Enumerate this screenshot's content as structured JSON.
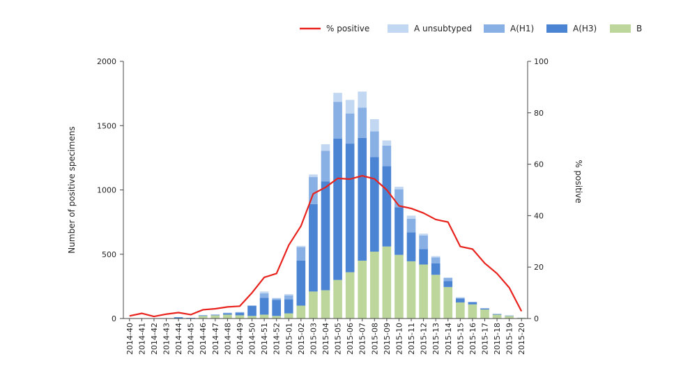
{
  "chart_data": {
    "type": "bar",
    "stacked": true,
    "categories": [
      "2014-40",
      "2014-41",
      "2014-42",
      "2014-43",
      "2014-44",
      "2014-45",
      "2014-46",
      "2014-47",
      "2014-48",
      "2014-49",
      "2014-50",
      "2014-51",
      "2014-52",
      "2015-01",
      "2015-02",
      "2015-03",
      "2015-04",
      "2015-05",
      "2015-06",
      "2015-07",
      "2015-08",
      "2015-09",
      "2015-10",
      "2015-11",
      "2015-12",
      "2015-13",
      "2015-14",
      "2015-15",
      "2015-16",
      "2015-17",
      "2015-18",
      "2015-19",
      "2015-20"
    ],
    "series": [
      {
        "name": "B",
        "color": "#bcd69c",
        "values": [
          0,
          0,
          0,
          0,
          0,
          0,
          20,
          25,
          30,
          25,
          20,
          30,
          20,
          40,
          100,
          210,
          220,
          300,
          360,
          450,
          520,
          560,
          495,
          445,
          420,
          340,
          245,
          125,
          110,
          70,
          30,
          20,
          5
        ]
      },
      {
        "name": "A(H3)",
        "color": "#4a84d2",
        "values": [
          0,
          0,
          0,
          0,
          10,
          5,
          5,
          5,
          10,
          20,
          80,
          130,
          125,
          110,
          350,
          680,
          845,
          1100,
          1000,
          955,
          735,
          625,
          370,
          225,
          120,
          90,
          45,
          30,
          15,
          8,
          5,
          3,
          1
        ]
      },
      {
        "name": "A(H1)",
        "color": "#88b0e4",
        "values": [
          0,
          0,
          0,
          0,
          0,
          0,
          0,
          0,
          5,
          5,
          0,
          35,
          10,
          30,
          105,
          210,
          240,
          285,
          235,
          235,
          200,
          160,
          140,
          105,
          105,
          45,
          25,
          5,
          5,
          2,
          0,
          0,
          0
        ]
      },
      {
        "name": "A unsubtyped",
        "color": "#c2d7f1",
        "values": [
          0,
          0,
          0,
          0,
          0,
          0,
          0,
          0,
          0,
          0,
          0,
          15,
          5,
          10,
          10,
          20,
          50,
          70,
          105,
          125,
          95,
          40,
          20,
          25,
          15,
          10,
          5,
          5,
          0,
          0,
          0,
          0,
          0
        ]
      }
    ],
    "line_series": {
      "name": "% positive",
      "color": "#e8221c",
      "axis": "right",
      "values": [
        1,
        2,
        0.8,
        1.7,
        2.3,
        1.5,
        3.4,
        3.8,
        4.5,
        4.8,
        10,
        16,
        17.5,
        28.5,
        36,
        48.5,
        51,
        54.5,
        54.2,
        55.5,
        54.3,
        50,
        43.8,
        42.8,
        41,
        38.5,
        37.5,
        28,
        27,
        21.5,
        17.5,
        12,
        2.8
      ]
    },
    "ylabel": "Number of positive specimens",
    "ylabel_right": "% positive",
    "ylim": [
      0,
      2000
    ],
    "ylim_right": [
      0,
      100
    ],
    "yticks": [
      0,
      500,
      1000,
      1500,
      2000
    ],
    "yticks_right": [
      0,
      20,
      40,
      60,
      80,
      100
    ],
    "legend_order": [
      "% positive",
      "A unsubtyped",
      "A(H1)",
      "A(H3)",
      "B"
    ],
    "legend_position": "top-right",
    "grid": false
  }
}
